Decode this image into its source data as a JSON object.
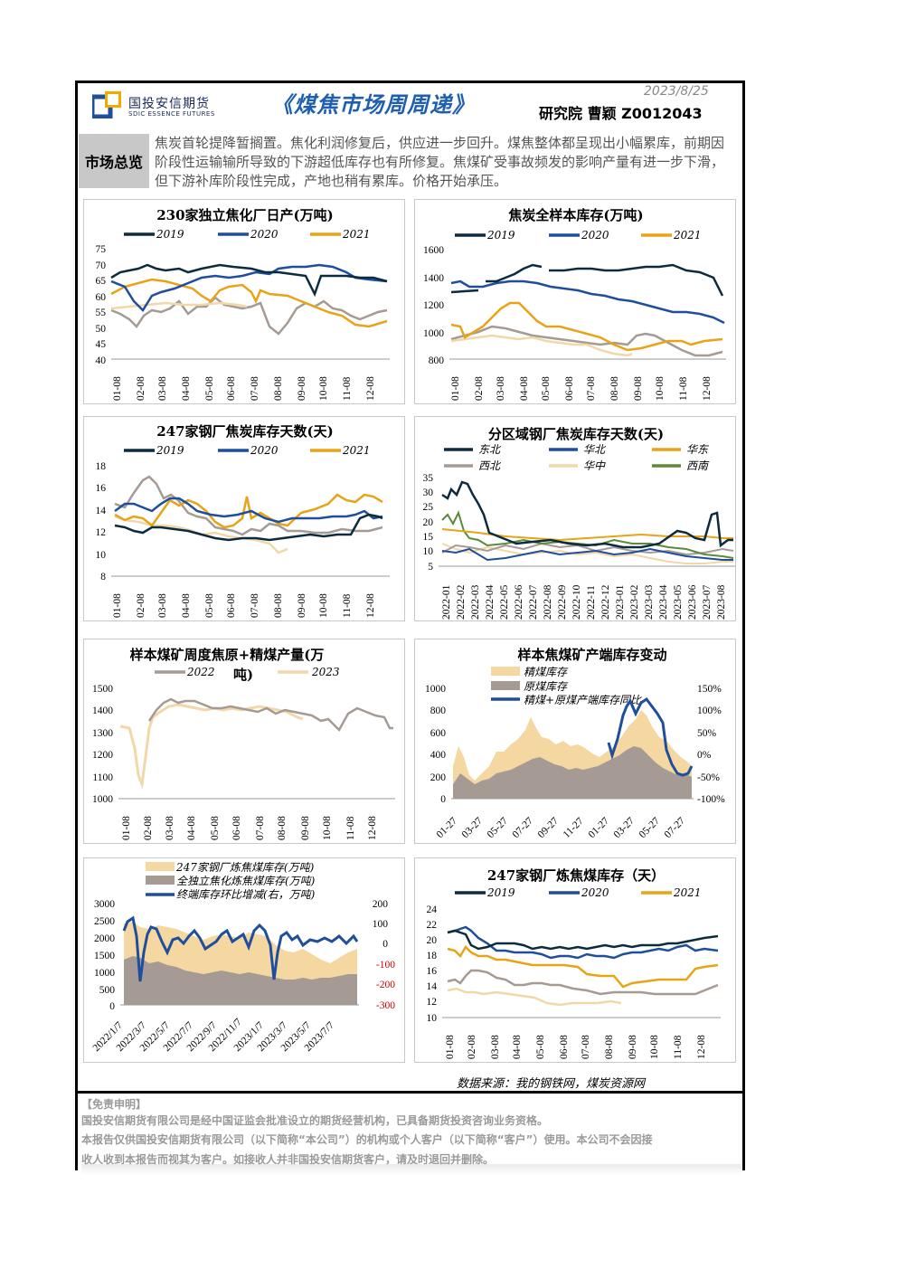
{
  "header": {
    "logo_cn": "国投安信期货",
    "logo_en": "SDIC ESSENCE FUTURES",
    "title": "《煤焦市场周周递》",
    "date": "2023/8/25",
    "author": "研究院    曹颖  Z0012043"
  },
  "overview": {
    "label": "市场总览",
    "text": "焦炭首轮提降暂搁置。焦化利润修复后，供应进一步回升。煤焦整体都呈现出小幅累库，前期因阶段性运输输所导致的下游超低库存也有所修复。焦煤矿受事故频发的影响产量有进一步下滑，但下游补库阶段性完成，产地也稍有累库。价格开始承压。"
  },
  "colors": {
    "y2019": "#0d2b3e",
    "y2020": "#1f4e9c",
    "y2021": "#e8a317",
    "y2022": "#a59a94",
    "y2023": "#f2d7a8",
    "huabei": "#1f4e9c",
    "xinan": "#5a8a3a",
    "area_light": "#f5d7a1",
    "area_dark": "#a59a94"
  },
  "charts": {
    "c1": {
      "title": "230家独立焦化厂日产(万吨)",
      "legend": [
        "2019",
        "2020",
        "2021"
      ],
      "yticks": [
        "75",
        "70",
        "65",
        "60",
        "55",
        "50",
        "45",
        "40"
      ],
      "xticks": [
        "01-08",
        "02-08",
        "03-08",
        "04-08",
        "05-08",
        "06-08",
        "07-08",
        "08-08",
        "09-08",
        "10-08",
        "11-08",
        "12-08"
      ]
    },
    "c2": {
      "title": "焦炭全样本库存(万吨)",
      "legend": [
        "2019",
        "2020",
        "2021"
      ],
      "yticks": [
        "1600",
        "1400",
        "1200",
        "1000",
        "800"
      ],
      "xticks": [
        "01-08",
        "02-08",
        "03-08",
        "04-08",
        "05-08",
        "06-08",
        "07-08",
        "08-08",
        "09-08",
        "10-08",
        "11-08",
        "12-08"
      ]
    },
    "c3": {
      "title": "247家钢厂焦炭库存天数(天)",
      "legend": [
        "2019",
        "2020",
        "2021"
      ],
      "yticks": [
        "18",
        "16",
        "14",
        "12",
        "10",
        "8"
      ],
      "xticks": [
        "01-08",
        "02-08",
        "03-08",
        "04-08",
        "05-08",
        "06-08",
        "07-08",
        "08-08",
        "09-08",
        "10-08",
        "11-08",
        "12-08"
      ]
    },
    "c4": {
      "title": "分区域钢厂焦炭库存天数(天)",
      "legend": [
        "东北",
        "华北",
        "华东",
        "西北",
        "华中",
        "西南"
      ],
      "yticks": [
        "35",
        "30",
        "25",
        "20",
        "15",
        "10",
        "5"
      ],
      "xticks": [
        "2022-01",
        "2022-02",
        "2022-03",
        "2022-04",
        "2022-05",
        "2022-06",
        "2022-07",
        "2022-08",
        "2022-09",
        "2022-10",
        "2022-11",
        "2022-12",
        "2023-01",
        "2023-02",
        "2023-03",
        "2023-04",
        "2023-05",
        "2023-06",
        "2023-07",
        "2023-08"
      ]
    },
    "c5": {
      "title": "样本煤矿周度焦原+精煤产量(万",
      "title2": "吨)",
      "legend": [
        "2022",
        "2023"
      ],
      "yticks": [
        "1500",
        "1400",
        "1300",
        "1200",
        "1100",
        "1000"
      ],
      "xticks": [
        "01-08",
        "02-08",
        "03-08",
        "04-08",
        "05-08",
        "06-08",
        "07-08",
        "08-08",
        "09-08",
        "10-08",
        "11-08",
        "12-08"
      ]
    },
    "c6": {
      "title": "样本焦煤矿产端库存变动",
      "legend": [
        "精煤库存",
        "原煤库存",
        "精煤+原煤产端库存同比"
      ],
      "yticks": [
        "1000",
        "800",
        "600",
        "400",
        "200",
        "0"
      ],
      "yticks_r": [
        "150%",
        "100%",
        "50%",
        "0%",
        "-50%",
        "-100%"
      ],
      "xticks": [
        "01-27",
        "03-27",
        "05-27",
        "07-27",
        "09-27",
        "11-27",
        "01-27",
        "03-27",
        "05-27",
        "07-27"
      ]
    },
    "c7": {
      "legend": [
        "247家钢厂炼焦煤库存(万吨)",
        "全独立焦化炼焦煤库存(万吨)",
        "终端库存环比增减(右，万吨)"
      ],
      "yticks": [
        "3000",
        "2500",
        "2000",
        "1500",
        "1000",
        "500",
        "0"
      ],
      "yticks_r": [
        "200",
        "100",
        "0",
        "-100",
        "-200",
        "-300"
      ],
      "xticks": [
        "2022/1/7",
        "2022/3/7",
        "2022/5/7",
        "2022/7/7",
        "2022/9/7",
        "2022/11/7",
        "2023/1/7",
        "2023/3/7",
        "2023/5/7",
        "2023/7/7"
      ]
    },
    "c8": {
      "title": "247家钢厂炼焦煤库存（天）",
      "legend": [
        "2019",
        "2020",
        "2021"
      ],
      "yticks": [
        "24",
        "22",
        "20",
        "18",
        "16",
        "14",
        "12",
        "10"
      ],
      "xticks": [
        "01-08",
        "02-08",
        "03-08",
        "04-08",
        "05-08",
        "06-08",
        "07-08",
        "08-08",
        "09-08",
        "10-08",
        "11-08",
        "12-08"
      ]
    }
  },
  "source": "数据来源：我的钢铁网，煤炭资源网",
  "disclaimer": {
    "title": "【免责申明】",
    "lines": [
      "国投安信期货有限公司是经中国证监会批准设立的期货经营机构，已具备期货投资咨询业务资格。",
      "本报告仅供国投安信期货有限公司（以下简称“本公司”）的机构或个人客户（以下简称“客户”）使用。本公司不会因接",
      "收人收到本报告而视其为客户。如接收人并非国投安信期货客户，请及时退回并删除。"
    ]
  }
}
